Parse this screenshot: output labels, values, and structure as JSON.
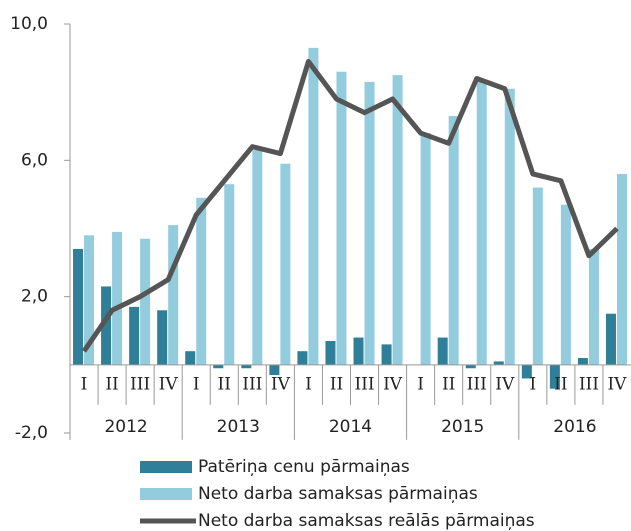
{
  "chart_data": {
    "type": "bar_line",
    "categories": [
      "I",
      "II",
      "III",
      "IV",
      "I",
      "II",
      "III",
      "IV",
      "I",
      "II",
      "III",
      "IV",
      "I",
      "II",
      "III",
      "IV",
      "I",
      "II",
      "III",
      "IV"
    ],
    "category_groups": [
      "2012",
      "2013",
      "2014",
      "2015",
      "2016"
    ],
    "series": [
      {
        "name": "Patēriņa cenu pārmaiņas",
        "type": "bar",
        "color": "#2e7f97",
        "values": [
          3.4,
          2.3,
          1.7,
          1.6,
          0.4,
          -0.1,
          -0.1,
          -0.3,
          0.4,
          0.7,
          0.8,
          0.6,
          0.0,
          0.8,
          -0.1,
          0.1,
          -0.4,
          -0.7,
          0.2,
          1.5
        ]
      },
      {
        "name": "Neto darba samaksas pārmaiņas",
        "type": "bar",
        "color": "#93cddd",
        "values": [
          3.8,
          3.9,
          3.7,
          4.1,
          4.9,
          5.3,
          6.3,
          5.9,
          9.3,
          8.6,
          8.3,
          8.5,
          6.8,
          7.3,
          8.3,
          8.1,
          5.2,
          4.7,
          3.4,
          5.6
        ]
      },
      {
        "name": "Neto darba samaksas reālās pārmaiņas",
        "type": "line",
        "color": "#555555",
        "values": [
          0.4,
          1.6,
          2.0,
          2.5,
          4.4,
          5.4,
          6.4,
          6.2,
          8.9,
          7.8,
          7.4,
          7.8,
          6.8,
          6.5,
          8.4,
          8.1,
          5.6,
          5.4,
          3.2,
          4.0
        ]
      }
    ],
    "ylim": [
      -2,
      10
    ],
    "yticks": [
      {
        "value": -2,
        "label": "-2,0"
      },
      {
        "value": 2,
        "label": "2,0"
      },
      {
        "value": 6,
        "label": "6,0"
      },
      {
        "value": 10,
        "label": "10,0"
      }
    ],
    "legend": "bottom"
  }
}
